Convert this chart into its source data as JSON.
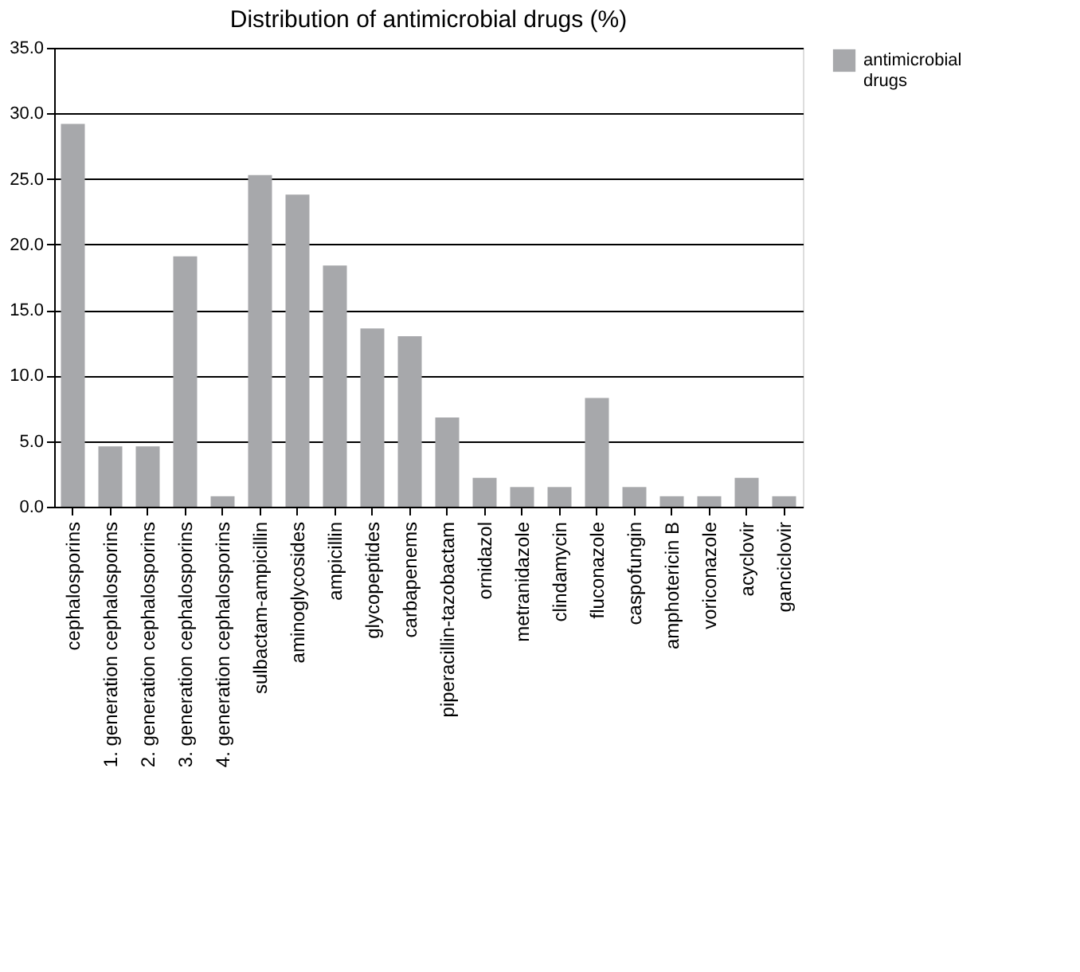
{
  "chart_data": {
    "type": "bar",
    "title": "Distribution of antimicrobial drugs (%)",
    "categories": [
      "cephalosporins",
      "1. generation cephalosporins",
      "2. generation cephalosporins",
      "3. generation cephalosporins",
      "4. generation cephalosporins",
      "sulbactam-ampicillin",
      "aminoglycosides",
      "ampicillin",
      "glycopeptides",
      "carbapenems",
      "piperacillin-tazobactam",
      "ornidazol",
      "metranidazole",
      "clindamycin",
      "fluconazole",
      "caspofungin",
      "amphotericin B",
      "voriconazole",
      "acyclovir",
      "ganciclovir"
    ],
    "series": [
      {
        "name": "antimicrobial drugs",
        "color": "#a7a8ab",
        "values": [
          29.2,
          4.6,
          4.6,
          19.1,
          0.8,
          25.3,
          23.8,
          18.4,
          13.6,
          13.0,
          6.8,
          2.2,
          1.5,
          1.5,
          8.3,
          1.5,
          0.8,
          0.8,
          2.2,
          0.8
        ]
      }
    ],
    "ylim": [
      0,
      35
    ],
    "yticks": [
      {
        "value": 0,
        "label": "0.0"
      },
      {
        "value": 5,
        "label": "5.0"
      },
      {
        "value": 10,
        "label": "10.0"
      },
      {
        "value": 15,
        "label": "15.0"
      },
      {
        "value": 20,
        "label": "20.0"
      },
      {
        "value": 25,
        "label": "25.0"
      },
      {
        "value": 30,
        "label": "30.0"
      },
      {
        "value": 35,
        "label": "35.0"
      }
    ],
    "grid": "y",
    "legend": "right"
  }
}
